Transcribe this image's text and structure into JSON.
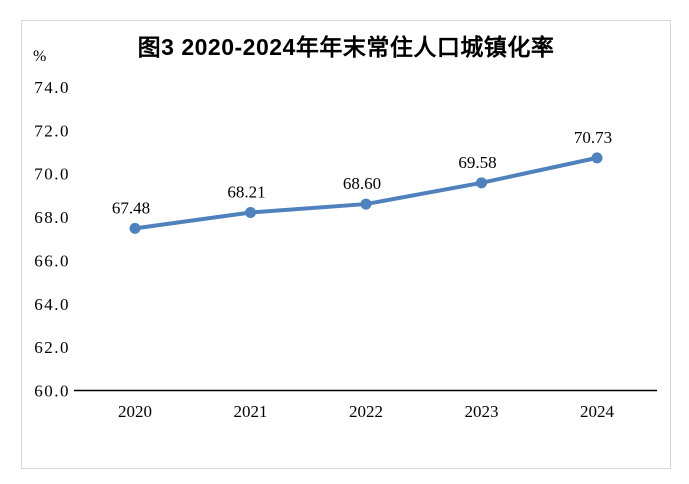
{
  "figure": {
    "title": "图3 2020-2024年年末常住人口城镇化率",
    "unit_label": "%"
  },
  "chart_data": {
    "type": "line",
    "title": "图3 2020-2024年年末常住人口城镇化率",
    "ylabel": "%",
    "xlabel": "",
    "categories": [
      "2020",
      "2021",
      "2022",
      "2023",
      "2024"
    ],
    "series": [
      {
        "values": [
          67.48,
          68.21,
          68.6,
          69.58,
          70.73
        ],
        "labels": [
          "67.48",
          "68.21",
          "68.60",
          "69.58",
          "70.73"
        ],
        "color": "#4f81bd"
      }
    ],
    "ylim": [
      60.0,
      74.0
    ],
    "ytick_step": 2.0,
    "yticks": [
      "60.0",
      "62.0",
      "64.0",
      "66.0",
      "68.0",
      "70.0",
      "72.0",
      "74.0"
    ],
    "grid": false,
    "legend": "none",
    "axis_color": "#000000",
    "frame_color": "#d9d9d9",
    "marker": "circle"
  }
}
